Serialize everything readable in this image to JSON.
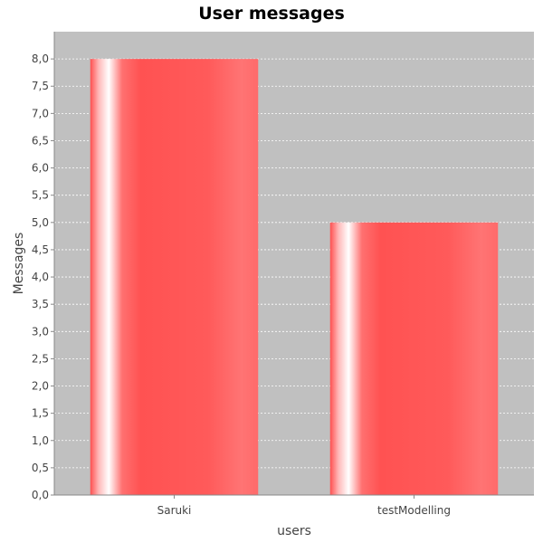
{
  "chart_data": {
    "type": "bar",
    "title": "User messages",
    "xlabel": "users",
    "ylabel": "Messages",
    "categories": [
      "Saruki",
      "testModelling"
    ],
    "values": [
      8.0,
      5.0
    ],
    "ylim": [
      0,
      8.5
    ],
    "yticks": [
      "0,0",
      "0,5",
      "1,0",
      "1,5",
      "2,0",
      "2,5",
      "3,0",
      "3,5",
      "4,0",
      "4,5",
      "5,0",
      "5,5",
      "6,0",
      "6,5",
      "7,0",
      "7,5",
      "8,0"
    ],
    "grid": true,
    "legend": "none",
    "colors": {
      "plot_background": "#c0c0c0",
      "bar": "#ff5555",
      "bar_highlight": "#ffffff",
      "gridline": "#ffffff"
    }
  }
}
